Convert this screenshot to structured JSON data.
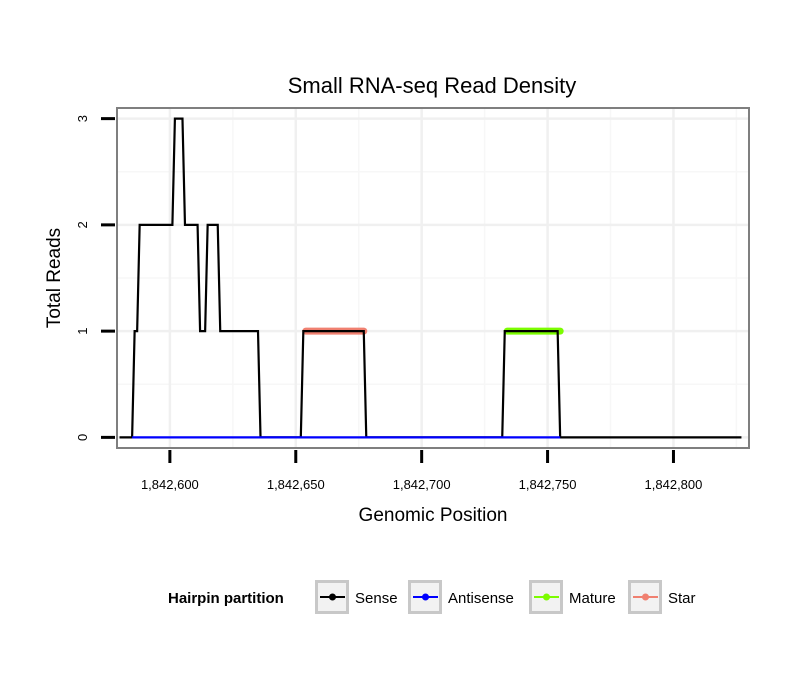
{
  "chart_data": {
    "type": "line",
    "title": "Small RNA-seq Read Density",
    "xlabel": "Genomic Position",
    "ylabel": "Total Reads",
    "xlim": [
      1842579,
      1842830
    ],
    "ylim": [
      -0.1,
      3.1
    ],
    "grid": true,
    "x_ticks": [
      {
        "value": 1842600,
        "label": "1,842,600"
      },
      {
        "value": 1842650,
        "label": "1,842,650"
      },
      {
        "value": 1842700,
        "label": "1,842,700"
      },
      {
        "value": 1842750,
        "label": "1,842,750"
      },
      {
        "value": 1842800,
        "label": "1,842,800"
      }
    ],
    "y_ticks": [
      {
        "value": 0,
        "label": "0"
      },
      {
        "value": 1,
        "label": "1"
      },
      {
        "value": 2,
        "label": "2"
      },
      {
        "value": 3,
        "label": "3"
      }
    ],
    "series": [
      {
        "name": "Sense",
        "color": "#000000",
        "points": [
          [
            1842580,
            0
          ],
          [
            1842585,
            0
          ],
          [
            1842586,
            1
          ],
          [
            1842587,
            1
          ],
          [
            1842588,
            2
          ],
          [
            1842601,
            2
          ],
          [
            1842602,
            3
          ],
          [
            1842605,
            3
          ],
          [
            1842606,
            2
          ],
          [
            1842611,
            2
          ],
          [
            1842612,
            1
          ],
          [
            1842614,
            1
          ],
          [
            1842615,
            2
          ],
          [
            1842619,
            2
          ],
          [
            1842620,
            1
          ],
          [
            1842635,
            1
          ],
          [
            1842636,
            0
          ],
          [
            1842652,
            0
          ],
          [
            1842653,
            1
          ],
          [
            1842677,
            1
          ],
          [
            1842678,
            0
          ],
          [
            1842732,
            0
          ],
          [
            1842733,
            1
          ],
          [
            1842754,
            1
          ],
          [
            1842755,
            0
          ],
          [
            1842827,
            0
          ]
        ]
      },
      {
        "name": "Antisense",
        "color": "#0000ff",
        "points": [
          [
            1842585,
            0
          ],
          [
            1842755,
            0
          ]
        ]
      },
      {
        "name": "Mature",
        "color": "#7cfc00",
        "points": [
          [
            1842734,
            1
          ],
          [
            1842755,
            1
          ]
        ]
      },
      {
        "name": "Star",
        "color": "#f08070",
        "points": [
          [
            1842654,
            1
          ],
          [
            1842677,
            1
          ]
        ]
      }
    ],
    "legend": {
      "title": "Hairpin partition",
      "position": "bottom",
      "entries": [
        "Sense",
        "Antisense",
        "Mature",
        "Star"
      ]
    }
  }
}
